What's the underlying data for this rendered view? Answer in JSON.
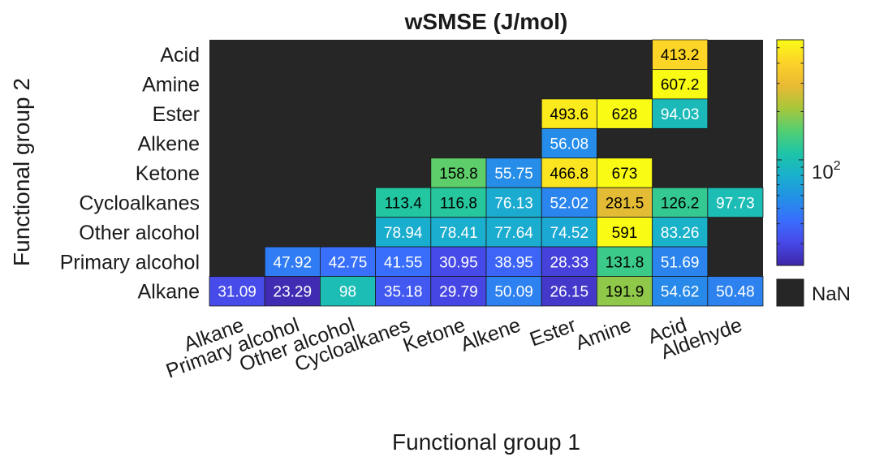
{
  "chart_data": {
    "type": "heatmap",
    "title": "wSMSE (J/mol)",
    "xlabel": "Functional group 1",
    "ylabel": "Functional group 2",
    "x_categories": [
      "Alkane",
      "Primary alcohol",
      "Other alcohol",
      "Cycloalkanes",
      "Ketone",
      "Alkene",
      "Ester",
      "Amine",
      "Acid",
      "Aldehyde"
    ],
    "y_categories": [
      "Acid",
      "Amine",
      "Ester",
      "Alkene",
      "Ketone",
      "Cycloalkanes",
      "Other alcohol",
      "Primary alcohol",
      "Alkane"
    ],
    "values": [
      [
        null,
        null,
        null,
        null,
        null,
        null,
        null,
        null,
        "413.2",
        null
      ],
      [
        null,
        null,
        null,
        null,
        null,
        null,
        null,
        null,
        "607.2",
        null
      ],
      [
        null,
        null,
        null,
        null,
        null,
        null,
        "493.6",
        "628",
        "94.03",
        null
      ],
      [
        null,
        null,
        null,
        null,
        null,
        null,
        "56.08",
        null,
        null,
        null
      ],
      [
        null,
        null,
        null,
        null,
        "158.8",
        "55.75",
        "466.8",
        "673",
        null,
        null
      ],
      [
        null,
        null,
        null,
        "113.4",
        "116.8",
        "76.13",
        "52.02",
        "281.5",
        "126.2",
        "97.73"
      ],
      [
        null,
        null,
        null,
        "78.94",
        "78.41",
        "77.64",
        "74.52",
        "591",
        "83.26",
        null
      ],
      [
        null,
        "47.92",
        "42.75",
        "41.55",
        "30.95",
        "38.95",
        "28.33",
        "131.8",
        "51.69",
        null
      ],
      [
        "31.09",
        "23.29",
        "98",
        "35.18",
        "29.79",
        "50.09",
        "26.15",
        "191.9",
        "54.62",
        "50.48"
      ]
    ],
    "color_scale": "log",
    "color_range": [
      22,
      560
    ],
    "colormap": "parula",
    "colorbar_tick": {
      "base": "10",
      "exponent": "2",
      "value": 100
    },
    "missing_label": "NaN",
    "missing_color": "#262626"
  }
}
